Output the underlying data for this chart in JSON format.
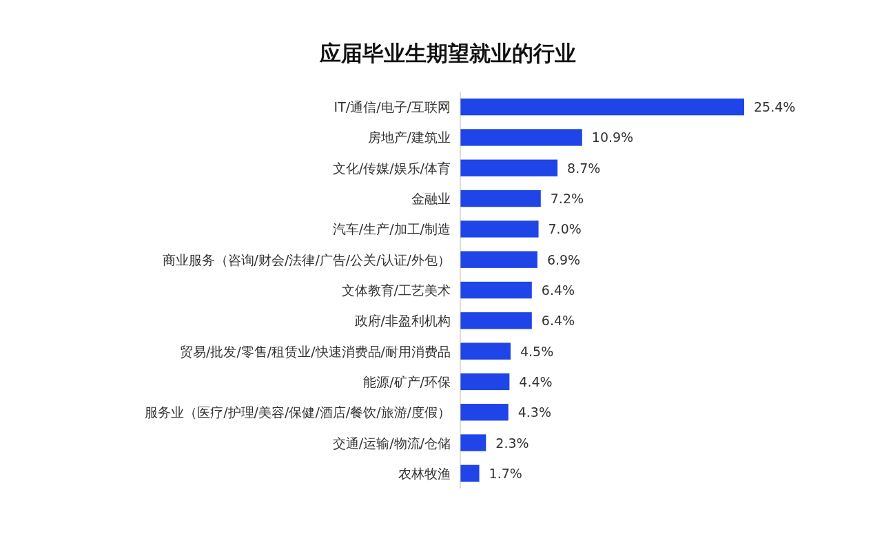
{
  "chart_data": {
    "type": "bar",
    "orientation": "horizontal",
    "title": "应届毕业生期望就业的行业",
    "categories": [
      "IT/通信/电子/互联网",
      "房地产/建筑业",
      "文化/传媒/娱乐/体育",
      "金融业",
      "汽车/生产/加工/制造",
      "商业服务（咨询/财会/法律/广告/公关/认证/外包）",
      "文体教育/工艺美术",
      "政府/非盈利机构",
      "贸易/批发/零售/租赁业/快速消费品/耐用消费品",
      "能源/矿产/环保",
      "服务业（医疗/护理/美容/保健/酒店/餐饮/旅游/度假）",
      "交通/运输/物流/仓储",
      "农林牧渔"
    ],
    "values": [
      25.4,
      10.9,
      8.7,
      7.2,
      7.0,
      6.9,
      6.4,
      6.4,
      4.5,
      4.4,
      4.3,
      2.3,
      1.7
    ],
    "value_labels": [
      "25.4%",
      "10.9%",
      "8.7%",
      "7.2%",
      "7.0%",
      "6.9%",
      "6.4%",
      "6.4%",
      "4.5%",
      "4.4%",
      "4.3%",
      "2.3%",
      "1.7%"
    ],
    "color": "#1f45e8"
  }
}
